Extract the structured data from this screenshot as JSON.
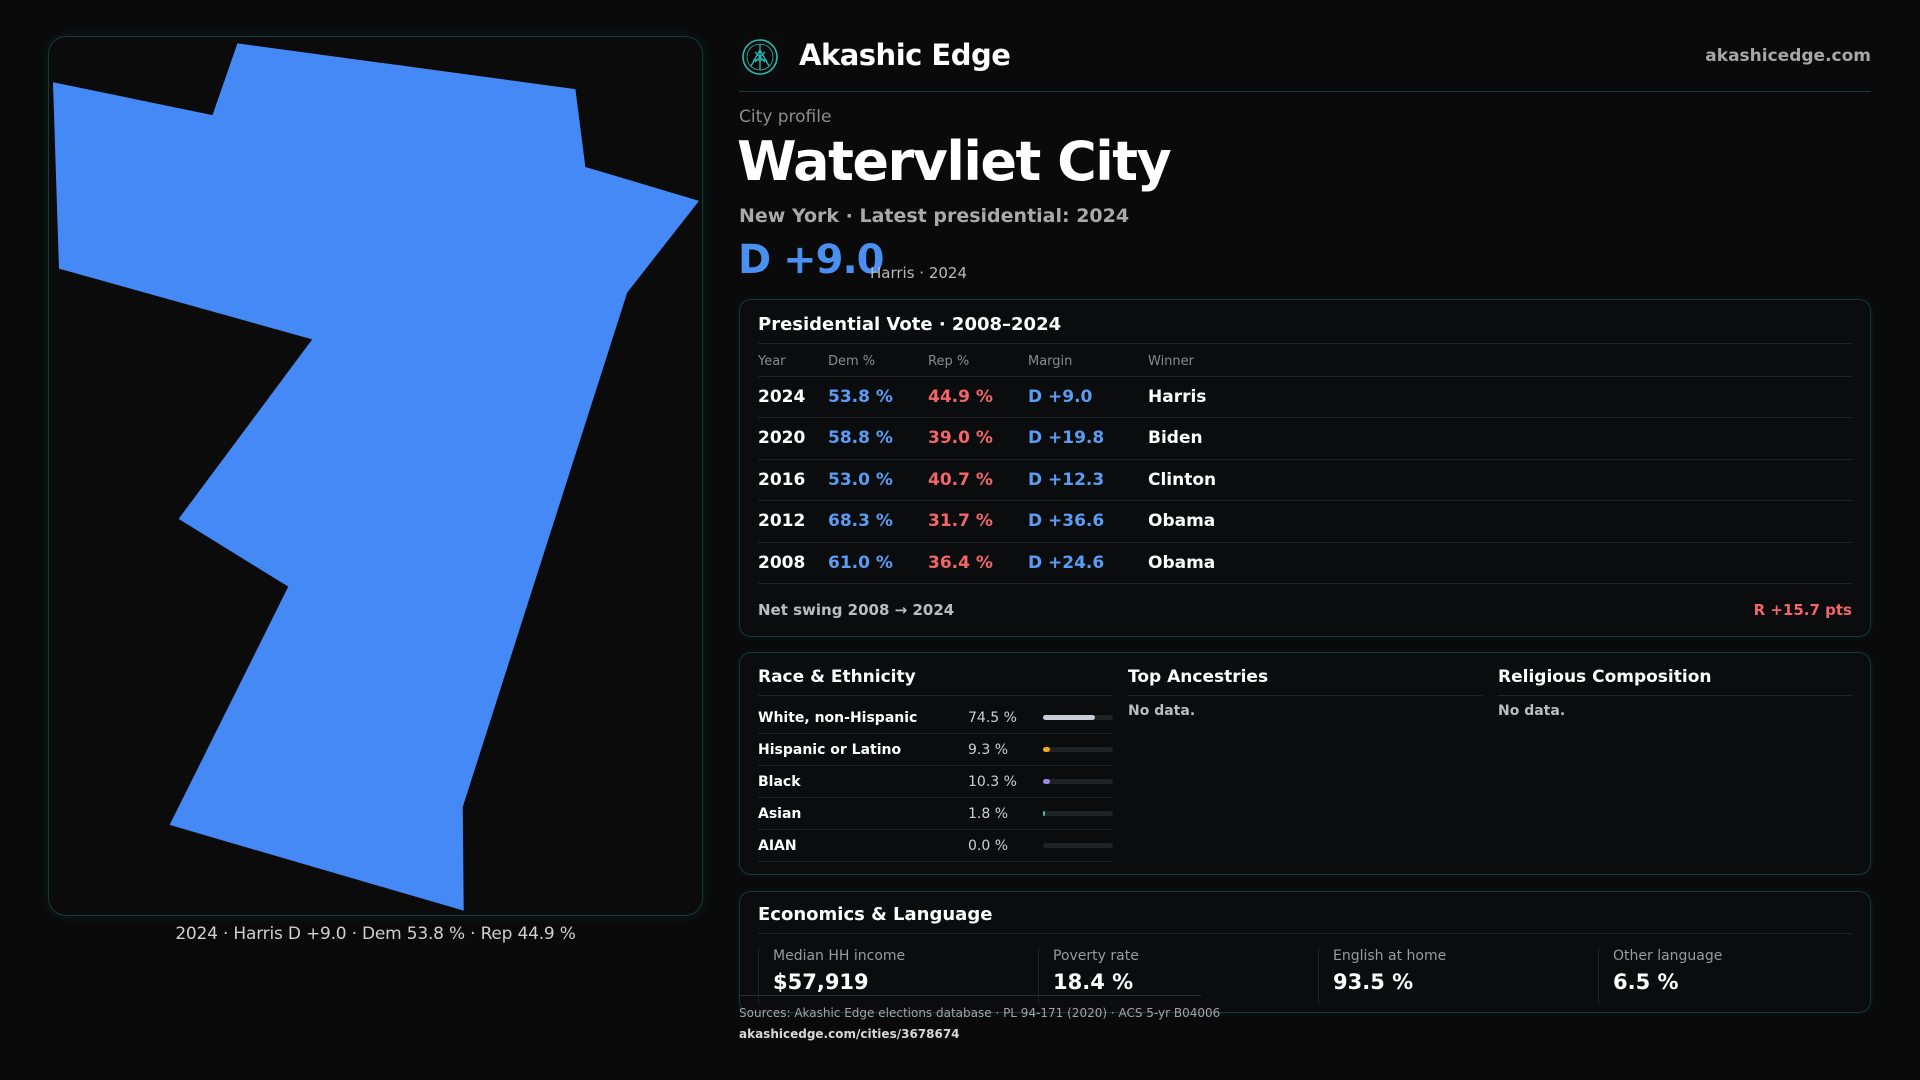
{
  "map": {
    "fill_color": "#4489f5",
    "caption": "2024 · Harris D +9.0 · Dem 53.8 % · Rep 44.9 %"
  },
  "header": {
    "brand": "Akashic Edge",
    "site": "akashicedge.com",
    "logo_icon": "crest-icon",
    "accent": "#2bb7b0"
  },
  "profile": {
    "eyebrow": "City profile",
    "title": "Watervliet City",
    "subline": "New York · Latest presidential: 2024",
    "margin": "D +9.0",
    "margin_note": "Harris · 2024"
  },
  "presidential": {
    "title": "Presidential Vote · 2008–2024",
    "headers": [
      "Year",
      "Dem %",
      "Rep %",
      "Margin",
      "Winner"
    ],
    "rows": [
      {
        "year": "2024",
        "dem": "53.8 %",
        "rep": "44.9 %",
        "margin": "D +9.0",
        "winner": "Harris"
      },
      {
        "year": "2020",
        "dem": "58.8 %",
        "rep": "39.0 %",
        "margin": "D +19.8",
        "winner": "Biden"
      },
      {
        "year": "2016",
        "dem": "53.0 %",
        "rep": "40.7 %",
        "margin": "D +12.3",
        "winner": "Clinton"
      },
      {
        "year": "2012",
        "dem": "68.3 %",
        "rep": "31.7 %",
        "margin": "D +36.6",
        "winner": "Obama"
      },
      {
        "year": "2008",
        "dem": "61.0 %",
        "rep": "36.4 %",
        "margin": "D +24.6",
        "winner": "Obama"
      }
    ],
    "swing_label": "Net swing 2008 → 2024",
    "swing_value": "R +15.7 pts",
    "dem_color": "#5b9cf5",
    "rep_color": "#f2666a"
  },
  "demographics": {
    "race_title": "Race & Ethnicity",
    "race": [
      {
        "name": "White, non-Hispanic",
        "pct": "74.5 %",
        "value": 74.5,
        "color": "#c9ccd4"
      },
      {
        "name": "Hispanic or Latino",
        "pct": "9.3 %",
        "value": 9.3,
        "color": "#f0a623"
      },
      {
        "name": "Black",
        "pct": "10.3 %",
        "value": 10.3,
        "color": "#9b86e8"
      },
      {
        "name": "Asian",
        "pct": "1.8 %",
        "value": 1.8,
        "color": "#2bc7a4"
      },
      {
        "name": "AIAN",
        "pct": "0.0 %",
        "value": 0.0,
        "color": "#d07a5a"
      }
    ],
    "ancestries_title": "Top Ancestries",
    "ancestries_text": "No data.",
    "religion_title": "Religious Composition",
    "religion_text": "No data."
  },
  "economics": {
    "title": "Economics & Language",
    "stats": [
      {
        "label": "Median HH income",
        "value": "$57,919"
      },
      {
        "label": "Poverty rate",
        "value": "18.4 %"
      },
      {
        "label": "English at home",
        "value": "93.5 %"
      },
      {
        "label": "Other language",
        "value": "6.5 %"
      }
    ]
  },
  "footer": {
    "sources": "Sources: Akashic Edge elections database · PL 94-171 (2020) · ACS 5-yr B04006",
    "url": "akashicedge.com/cities/3678674"
  }
}
